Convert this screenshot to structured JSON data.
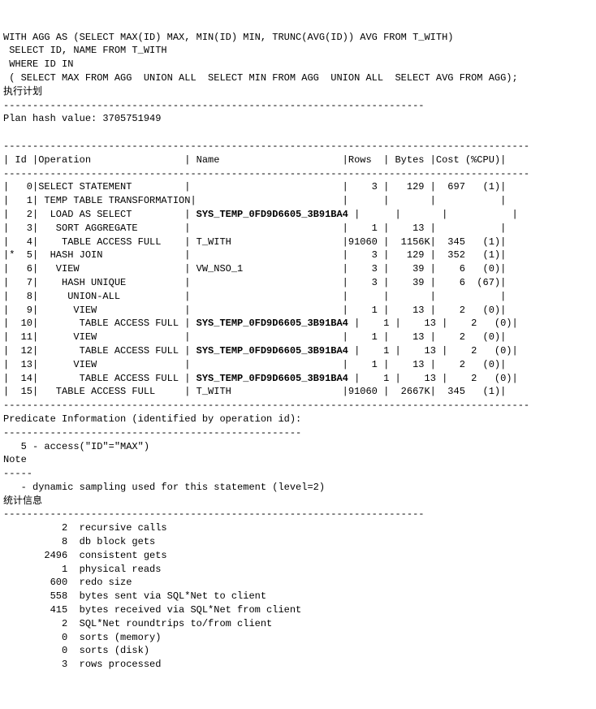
{
  "sql": {
    "line1": "WITH AGG AS (SELECT MAX(ID) MAX, MIN(ID) MIN, TRUNC(AVG(ID)) AVG FROM T_WITH)",
    "line2": " SELECT ID, NAME FROM T_WITH",
    "line3": " WHERE ID IN",
    "line4": " ( SELECT MAX FROM AGG  UNION ALL  SELECT MIN FROM AGG  UNION ALL  SELECT AVG FROM AGG);"
  },
  "labels": {
    "exec_plan": "执行计划",
    "dash72": "------------------------------------------------------------------------",
    "plan_hash": "Plan hash value: 3705751949",
    "dash90": "------------------------------------------------------------------------------------------",
    "header": "| Id |Operation                | Name                     |Rows  | Bytes |Cost (%CPU)|",
    "predicate_title": "Predicate Information (identified by operation id):",
    "dash51": "---------------------------------------------------",
    "predicate_line": "   5 - access(\"ID\"=\"MAX\")",
    "note": "Note",
    "dash5": "-----",
    "note_line": "   - dynamic sampling used for this statement (level=2)",
    "stats_label": "统计信息"
  },
  "plan": {
    "row0": "|   0|SELECT STATEMENT         |                          |    3 |   129 |  697   (1)|",
    "row1": "|   1| TEMP TABLE TRANSFORMATION|                         |      |       |           |",
    "row2a": "|   2|  LOAD AS SELECT         | ",
    "row2b": "SYS_TEMP_0FD9D6605_3B91BA4",
    "row2c": " |      |       |           |",
    "row3": "|   3|   SORT AGGREGATE        |                          |    1 |    13 |           |",
    "row4": "|   4|    TABLE ACCESS FULL    | T_WITH                   |91060 |  1156K|  345   (1)|",
    "row5": "|*  5|  HASH JOIN              |                          |    3 |   129 |  352   (1)|",
    "row6": "|   6|   VIEW                  | VW_NSO_1                 |    3 |    39 |    6   (0)|",
    "row7": "|   7|    HASH UNIQUE          |                          |    3 |    39 |    6  (67)|",
    "row8": "|   8|     UNION-ALL           |                          |      |       |           |",
    "row9": "|   9|      VIEW               |                          |    1 |    13 |    2   (0)|",
    "row10a": "|  10|       TABLE ACCESS FULL | ",
    "row10b": "SYS_TEMP_0FD9D6605_3B91BA4",
    "row10c": " |    1 |    13 |    2   (0)|",
    "row11": "|  11|      VIEW               |                          |    1 |    13 |    2   (0)|",
    "row12a": "|  12|       TABLE ACCESS FULL | ",
    "row12b": "SYS_TEMP_0FD9D6605_3B91BA4",
    "row12c": " |    1 |    13 |    2   (0)|",
    "row13": "|  13|      VIEW               |                          |    1 |    13 |    2   (0)|",
    "row14a": "|  14|       TABLE ACCESS FULL | ",
    "row14b": "SYS_TEMP_0FD9D6605_3B91BA4",
    "row14c": " |    1 |    13 |    2   (0)|",
    "row15": "|  15|   TABLE ACCESS FULL     | T_WITH                   |91060 |  2667K|  345   (1)|"
  },
  "stats": {
    "s0": "          2  recursive calls",
    "s1": "          8  db block gets",
    "s2": "       2496  consistent gets",
    "s3": "          1  physical reads",
    "s4": "        600  redo size",
    "s5": "        558  bytes sent via SQL*Net to client",
    "s6": "        415  bytes received via SQL*Net from client",
    "s7": "          2  SQL*Net roundtrips to/from client",
    "s8": "          0  sorts (memory)",
    "s9": "          0  sorts (disk)",
    "s10": "          3  rows processed"
  }
}
